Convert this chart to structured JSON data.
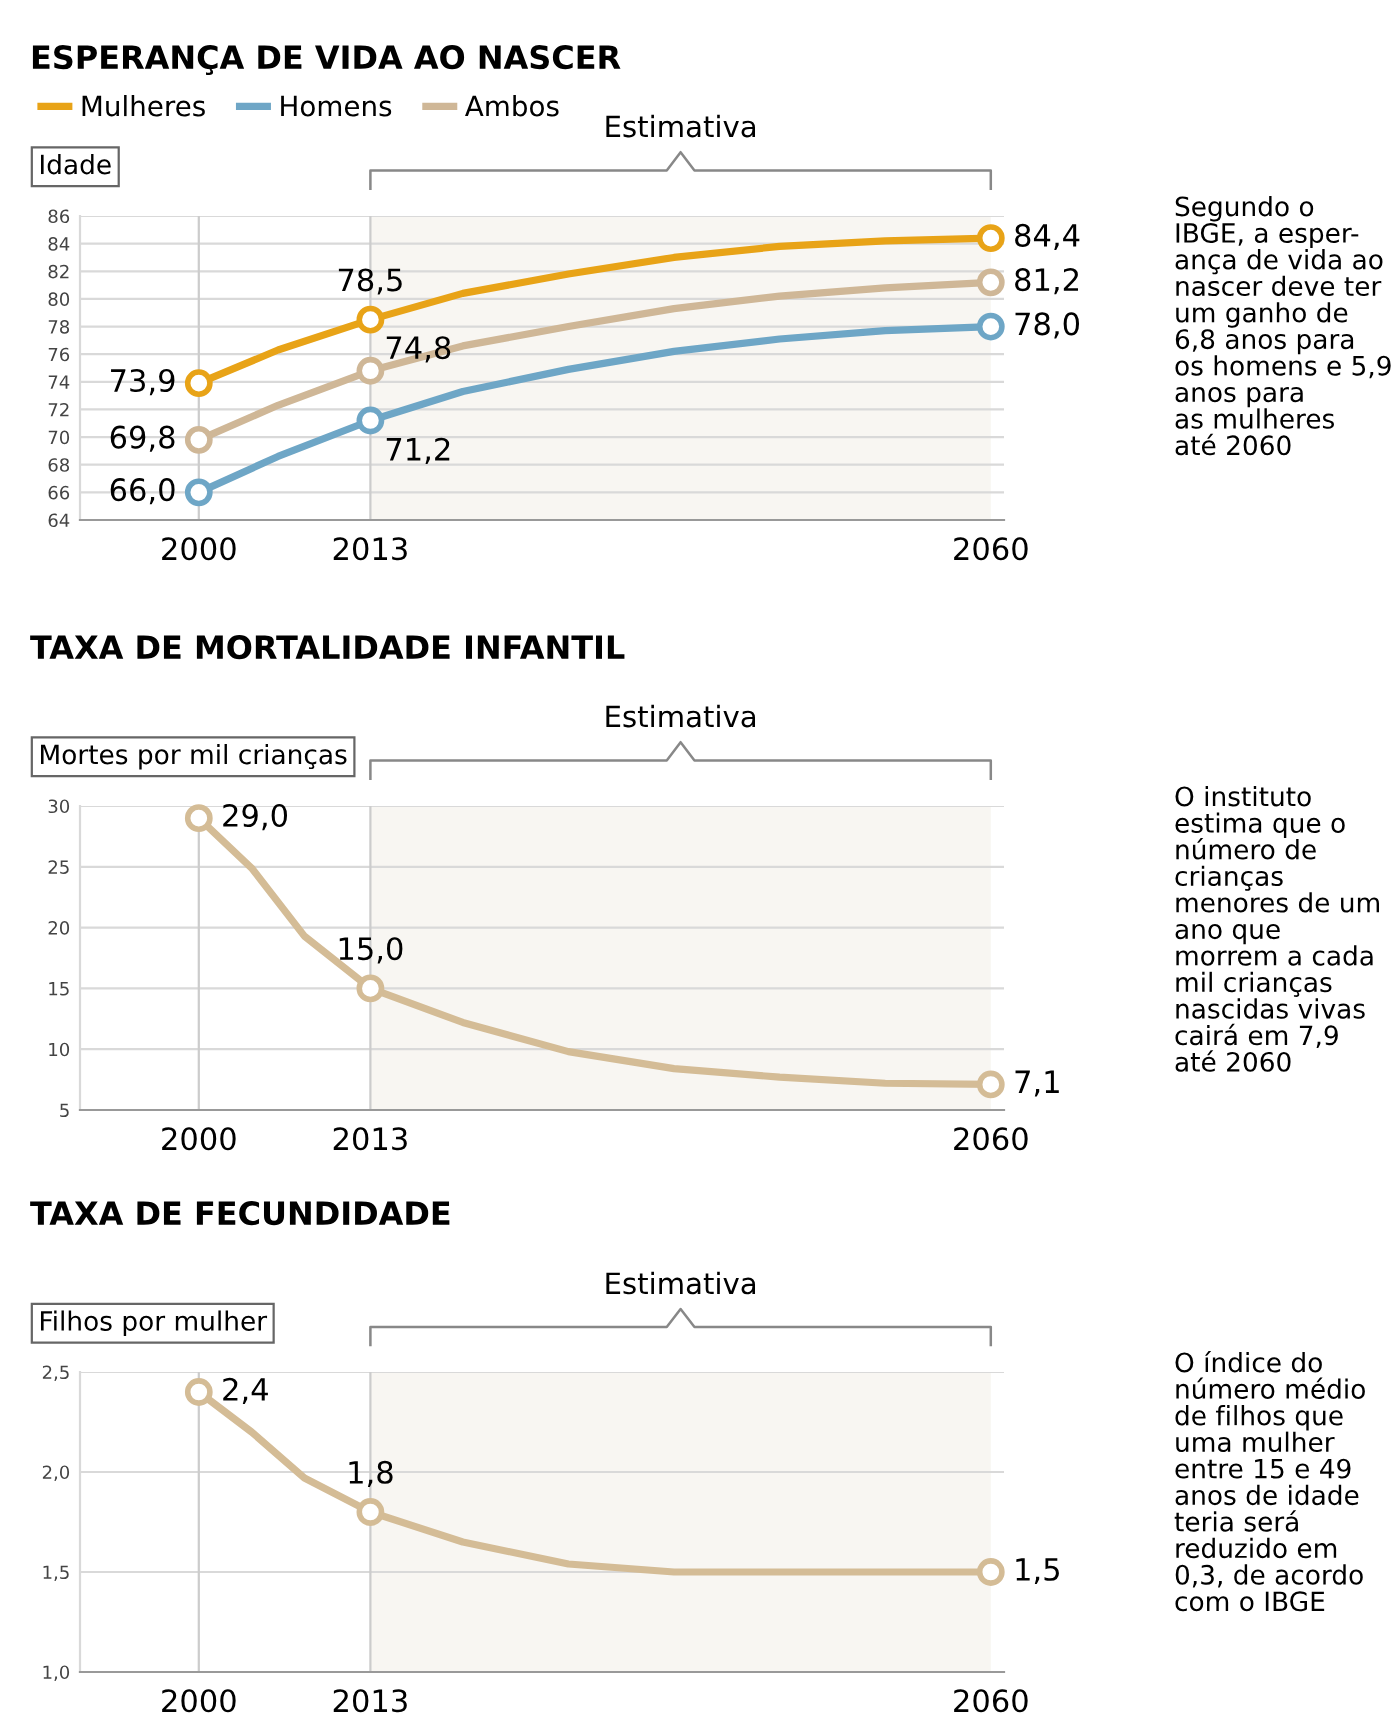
{
  "chart_data": [
    {
      "type": "line",
      "title": "ESPERANÇA DE VIDA AO NASCER",
      "ylabel": "Idade",
      "x": [
        2000,
        2006,
        2013,
        2020,
        2028,
        2036,
        2044,
        2052,
        2060
      ],
      "xlim": [
        1991,
        2061
      ],
      "xticks": [
        2000,
        2013,
        2060
      ],
      "ylim": [
        64,
        86
      ],
      "yticks": [
        64,
        66,
        68,
        70,
        72,
        74,
        76,
        78,
        80,
        82,
        84,
        86
      ],
      "series": [
        {
          "name": "Mulheres",
          "color": "#e8a317",
          "marker": "none",
          "values": [
            73.9,
            76.3,
            78.5,
            80.4,
            81.8,
            83.0,
            83.8,
            84.2,
            84.4
          ]
        },
        {
          "name": "Homens",
          "color": "#6ea6c6",
          "marker": "none",
          "values": [
            66.0,
            68.6,
            71.2,
            73.3,
            74.9,
            76.2,
            77.1,
            77.7,
            78.0
          ]
        },
        {
          "name": "Ambos",
          "color": "#cfb797",
          "marker": "none",
          "values": [
            69.8,
            72.3,
            74.8,
            76.6,
            78.0,
            79.3,
            80.2,
            80.8,
            81.2
          ]
        },
        {
          "type": "scatter",
          "color": "#e8a317",
          "marker": "circle",
          "x": [
            2000,
            2013,
            2060
          ],
          "values": [
            73.9,
            78.5,
            84.4
          ],
          "value_labels": [
            "73,9",
            "78,5",
            "84,4"
          ]
        },
        {
          "type": "scatter",
          "color": "#6ea6c6",
          "marker": "circle",
          "x": [
            2000,
            2013,
            2060
          ],
          "values": [
            66.0,
            71.2,
            78.0
          ],
          "value_labels": [
            "66,0",
            "71,2",
            "78,0"
          ]
        },
        {
          "type": "scatter",
          "color": "#cfb797",
          "marker": "circle",
          "x": [
            2000,
            2013,
            2060
          ],
          "values": [
            69.8,
            74.8,
            81.2
          ],
          "value_labels": [
            "69,8",
            "74,8",
            "81,2"
          ]
        }
      ],
      "legend": "top left",
      "grid": "y",
      "line_style": "solid",
      "ref_lines": [
        {
          "axis": "x",
          "value": 2000,
          "color": "#cccccc"
        },
        {
          "axis": "x",
          "value": 2013,
          "color": "#cccccc"
        }
      ],
      "bands": [
        {
          "axis": "x",
          "from": 2013,
          "to": 2060,
          "label": "Estimativa",
          "color": "#f8f6f2"
        }
      ],
      "annotations": [
        "Segundo o\nIBGE, a esper-\nança de vida ao\nnascer deve ter\num ganho de\n6,8 anos para\nos homens e 5,9\nanos para\nas mulheres\naté 2060"
      ]
    },
    {
      "type": "line",
      "title": "TAXA DE MORTALIDADE INFANTIL",
      "ylabel": "Mortes por mil crianças",
      "x": [
        2000,
        2004,
        2008,
        2013,
        2020,
        2028,
        2036,
        2044,
        2052,
        2060
      ],
      "xlim": [
        1991,
        2061
      ],
      "xticks": [
        2000,
        2013,
        2060
      ],
      "ylim": [
        5,
        30
      ],
      "yticks": [
        5,
        10,
        15,
        20,
        25,
        30
      ],
      "series": [
        {
          "color": "#d4bc96",
          "marker": "none",
          "values": [
            29.0,
            24.9,
            19.3,
            15.0,
            12.2,
            9.8,
            8.4,
            7.7,
            7.2,
            7.1
          ]
        },
        {
          "type": "scatter",
          "color": "#d4bc96",
          "marker": "circle",
          "x": [
            2000,
            2013,
            2060
          ],
          "values": [
            29.0,
            15.0,
            7.1
          ],
          "value_labels": [
            "29,0",
            "15,0",
            "7,1"
          ]
        }
      ],
      "grid": "y",
      "line_style": "solid",
      "ref_lines": [
        {
          "axis": "x",
          "value": 2000,
          "color": "#cccccc"
        },
        {
          "axis": "x",
          "value": 2013,
          "color": "#cccccc"
        }
      ],
      "bands": [
        {
          "axis": "x",
          "from": 2013,
          "to": 2060,
          "label": "Estimativa",
          "color": "#f8f6f2"
        }
      ],
      "annotations": [
        "O instituto\nestima que o\nnúmero de\ncrianças\nmenores de um\nano que\nmorrem a cada\nmil crianças\nnascidas vivas\ncairá em 7,9\naté 2060"
      ]
    },
    {
      "type": "line",
      "title": "TAXA DE FECUNDIDADE",
      "ylabel": "Filhos por mulher",
      "x": [
        2000,
        2004,
        2008,
        2013,
        2020,
        2028,
        2036,
        2044,
        2052,
        2060
      ],
      "xlim": [
        1991,
        2061
      ],
      "xticks": [
        2000,
        2013,
        2060
      ],
      "ylim": [
        1.0,
        2.5
      ],
      "yticks": [
        {
          "value": 1.0,
          "label": "1,0"
        },
        {
          "value": 1.5,
          "label": "1,5"
        },
        {
          "value": 2.0,
          "label": "2,0"
        },
        {
          "value": 2.5,
          "label": "2,5"
        }
      ],
      "series": [
        {
          "color": "#d4bc96",
          "marker": "none",
          "values": [
            2.4,
            2.2,
            1.97,
            1.8,
            1.65,
            1.54,
            1.5,
            1.5,
            1.5,
            1.5
          ]
        },
        {
          "type": "scatter",
          "color": "#d4bc96",
          "marker": "circle",
          "x": [
            2000,
            2013,
            2060
          ],
          "values": [
            2.4,
            1.8,
            1.5
          ],
          "value_labels": [
            "2,4",
            "1,8",
            "1,5"
          ]
        }
      ],
      "grid": "y",
      "line_style": "solid",
      "ref_lines": [
        {
          "axis": "x",
          "value": 2000,
          "color": "#cccccc"
        },
        {
          "axis": "x",
          "value": 2013,
          "color": "#cccccc"
        }
      ],
      "bands": [
        {
          "axis": "x",
          "from": 2013,
          "to": 2060,
          "label": "Estimativa",
          "color": "#f8f6f2"
        }
      ],
      "annotations": [
        "O índice do\nnúmero médio\nde filhos que\numa mulher\nentre 15 e 49\nanos de idade\nteria será\nreduzido em\n0,3, de acordo\ncom o IBGE"
      ]
    }
  ]
}
